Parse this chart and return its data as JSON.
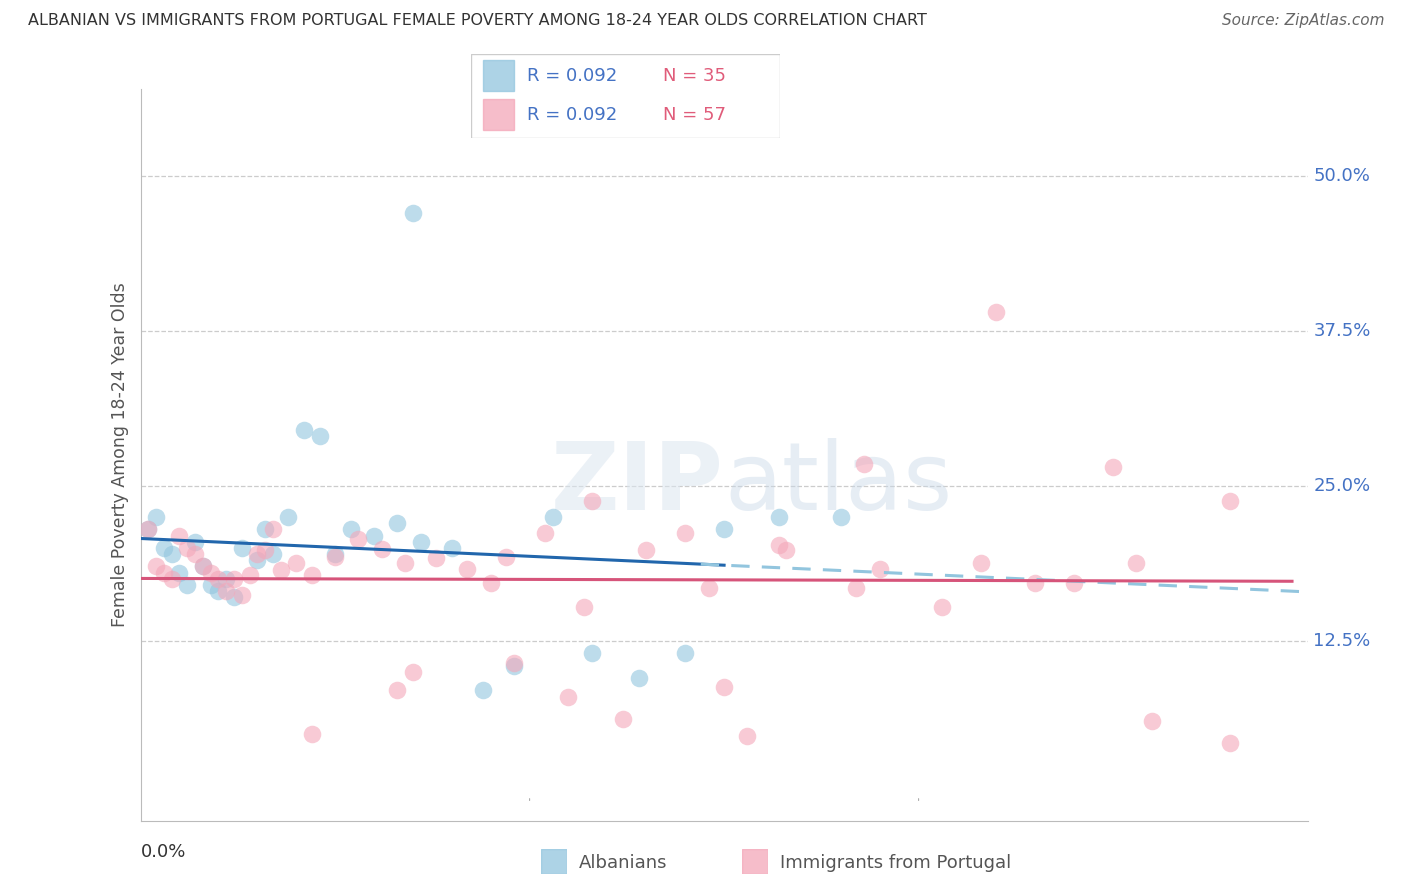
{
  "title": "ALBANIAN VS IMMIGRANTS FROM PORTUGAL FEMALE POVERTY AMONG 18-24 YEAR OLDS CORRELATION CHART",
  "source": "Source: ZipAtlas.com",
  "ylabel": "Female Poverty Among 18-24 Year Olds",
  "xlim": [
    0.0,
    0.15
  ],
  "ylim": [
    -0.02,
    0.57
  ],
  "yticks": [
    0.125,
    0.25,
    0.375,
    0.5
  ],
  "ytick_labels": [
    "12.5%",
    "25.0%",
    "37.5%",
    "50.0%"
  ],
  "blue_color": "#92c5de",
  "pink_color": "#f4a7b9",
  "blue_line_color": "#2166ac",
  "pink_line_color": "#d6547a",
  "blue_dash_color": "#92c5de",
  "albanians_x": [
    0.001,
    0.002,
    0.003,
    0.004,
    0.005,
    0.006,
    0.007,
    0.008,
    0.009,
    0.01,
    0.011,
    0.012,
    0.013,
    0.015,
    0.016,
    0.017,
    0.019,
    0.021,
    0.023,
    0.025,
    0.027,
    0.03,
    0.033,
    0.036,
    0.04,
    0.044,
    0.048,
    0.053,
    0.058,
    0.064,
    0.07,
    0.075,
    0.082,
    0.09,
    0.035
  ],
  "albanians_y": [
    0.215,
    0.225,
    0.2,
    0.195,
    0.18,
    0.17,
    0.205,
    0.185,
    0.17,
    0.165,
    0.175,
    0.16,
    0.2,
    0.19,
    0.215,
    0.195,
    0.225,
    0.295,
    0.29,
    0.195,
    0.215,
    0.21,
    0.22,
    0.205,
    0.2,
    0.085,
    0.105,
    0.225,
    0.115,
    0.095,
    0.115,
    0.215,
    0.225,
    0.225,
    0.47
  ],
  "portugal_x": [
    0.001,
    0.002,
    0.003,
    0.004,
    0.005,
    0.006,
    0.007,
    0.008,
    0.009,
    0.01,
    0.011,
    0.012,
    0.013,
    0.014,
    0.015,
    0.016,
    0.017,
    0.018,
    0.02,
    0.022,
    0.025,
    0.028,
    0.031,
    0.034,
    0.038,
    0.042,
    0.047,
    0.052,
    0.058,
    0.065,
    0.073,
    0.082,
    0.092,
    0.103,
    0.115,
    0.128,
    0.14,
    0.12,
    0.108,
    0.095,
    0.083,
    0.07,
    0.057,
    0.045,
    0.033,
    0.022,
    0.035,
    0.048,
    0.062,
    0.078,
    0.093,
    0.11,
    0.13,
    0.14,
    0.125,
    0.055,
    0.075
  ],
  "portugal_y": [
    0.215,
    0.185,
    0.18,
    0.175,
    0.21,
    0.2,
    0.195,
    0.185,
    0.18,
    0.175,
    0.165,
    0.175,
    0.162,
    0.178,
    0.195,
    0.198,
    0.215,
    0.182,
    0.188,
    0.178,
    0.193,
    0.207,
    0.199,
    0.188,
    0.192,
    0.183,
    0.193,
    0.212,
    0.238,
    0.198,
    0.168,
    0.202,
    0.168,
    0.152,
    0.172,
    0.188,
    0.238,
    0.172,
    0.188,
    0.183,
    0.198,
    0.212,
    0.152,
    0.172,
    0.085,
    0.05,
    0.1,
    0.107,
    0.062,
    0.048,
    0.268,
    0.39,
    0.06,
    0.043,
    0.265,
    0.08,
    0.088
  ]
}
